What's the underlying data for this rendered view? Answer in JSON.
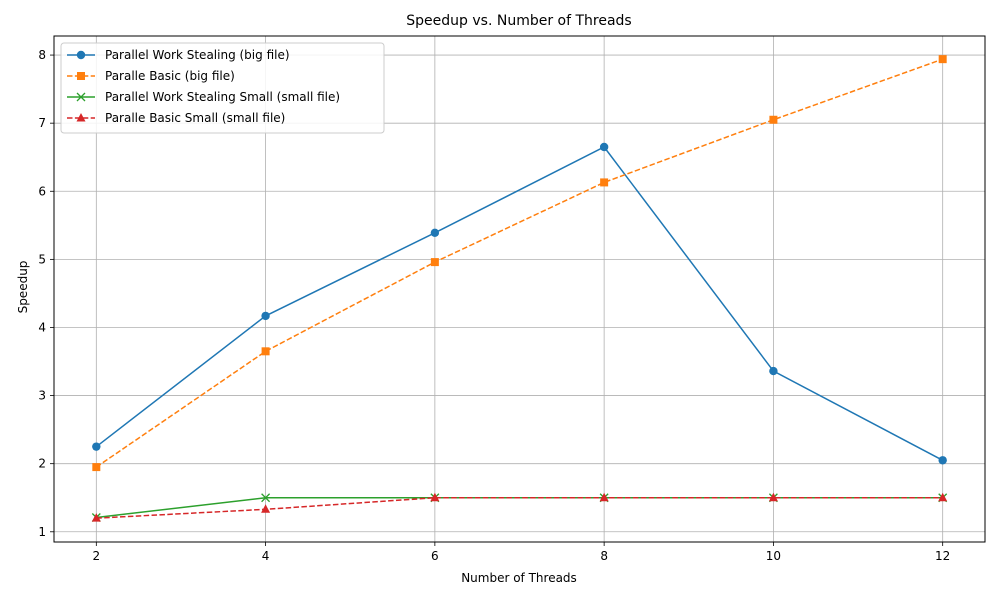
{
  "chart_data": {
    "type": "line",
    "title": "Speedup vs. Number of Threads",
    "xlabel": "Number of Threads",
    "ylabel": "Speedup",
    "x": [
      2,
      4,
      6,
      8,
      10,
      12
    ],
    "xlim": [
      1.5,
      12.5
    ],
    "ylim": [
      0.85,
      8.28
    ],
    "xticks": [
      2,
      4,
      6,
      8,
      10,
      12
    ],
    "yticks": [
      1,
      2,
      3,
      4,
      5,
      6,
      7,
      8
    ],
    "grid": true,
    "legend_position": "top-left",
    "series": [
      {
        "name": "Parallel Work Stealing (big file)",
        "values": [
          2.25,
          4.17,
          5.39,
          6.65,
          3.36,
          2.05
        ],
        "color": "#1f77b4",
        "dash": "solid",
        "marker": "circle"
      },
      {
        "name": "Paralle Basic (big file)",
        "values": [
          1.95,
          3.65,
          4.96,
          6.13,
          7.05,
          7.94
        ],
        "color": "#ff7f0e",
        "dash": "dashed",
        "marker": "square"
      },
      {
        "name": "Parallel Work Stealing Small (small file)",
        "values": [
          1.21,
          1.5,
          1.5,
          1.5,
          1.5,
          1.5
        ],
        "color": "#2ca02c",
        "dash": "solid",
        "marker": "x"
      },
      {
        "name": "Paralle Basic Small (small file)",
        "values": [
          1.2,
          1.33,
          1.5,
          1.5,
          1.5,
          1.5
        ],
        "color": "#d62728",
        "dash": "dashed",
        "marker": "triangle"
      }
    ]
  }
}
